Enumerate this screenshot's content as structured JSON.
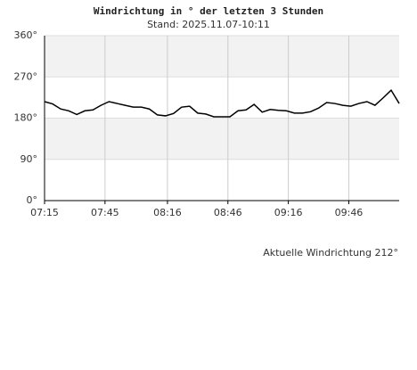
{
  "chart_data": {
    "type": "line",
    "title": "Windrichtung in ° der letzten 3 Stunden",
    "subtitle": "Stand: 2025.11.07-10:11",
    "annotation": "Aktuelle Windrichtung 212°",
    "x": [
      "07:15",
      "07:19",
      "07:23",
      "07:27",
      "07:31",
      "07:35",
      "07:39",
      "07:43",
      "07:47",
      "07:51",
      "07:55",
      "07:59",
      "08:03",
      "08:07",
      "08:11",
      "08:15",
      "08:19",
      "08:23",
      "08:27",
      "08:31",
      "08:35",
      "08:39",
      "08:43",
      "08:47",
      "08:51",
      "08:55",
      "08:59",
      "09:03",
      "09:07",
      "09:11",
      "09:15",
      "09:19",
      "09:23",
      "09:27",
      "09:31",
      "09:35",
      "09:39",
      "09:43",
      "09:47",
      "09:51",
      "09:55",
      "09:59",
      "10:03",
      "10:07",
      "10:11"
    ],
    "series": [
      {
        "color": "#000000",
        "values": [
          216,
          211,
          200,
          196,
          188,
          196,
          198,
          208,
          216,
          212,
          208,
          204,
          204,
          200,
          187,
          185,
          190,
          204,
          206,
          191,
          189,
          183,
          183,
          183,
          196,
          198,
          210,
          193,
          199,
          197,
          196,
          191,
          191,
          194,
          202,
          214,
          212,
          208,
          206,
          212,
          216,
          208,
          224,
          241,
          212
        ]
      }
    ],
    "xlim": [
      "07:15",
      "10:11"
    ],
    "xticks": [
      "07:15",
      "07:45",
      "08:16",
      "08:46",
      "09:16",
      "09:46"
    ],
    "ylim": [
      0,
      360
    ],
    "yticks": [
      {
        "value": 0,
        "label": "0°"
      },
      {
        "value": 90,
        "label": "90°"
      },
      {
        "value": 180,
        "label": "180°"
      },
      {
        "value": 270,
        "label": "270°"
      },
      {
        "value": 360,
        "label": "360°"
      }
    ],
    "grid": true
  }
}
